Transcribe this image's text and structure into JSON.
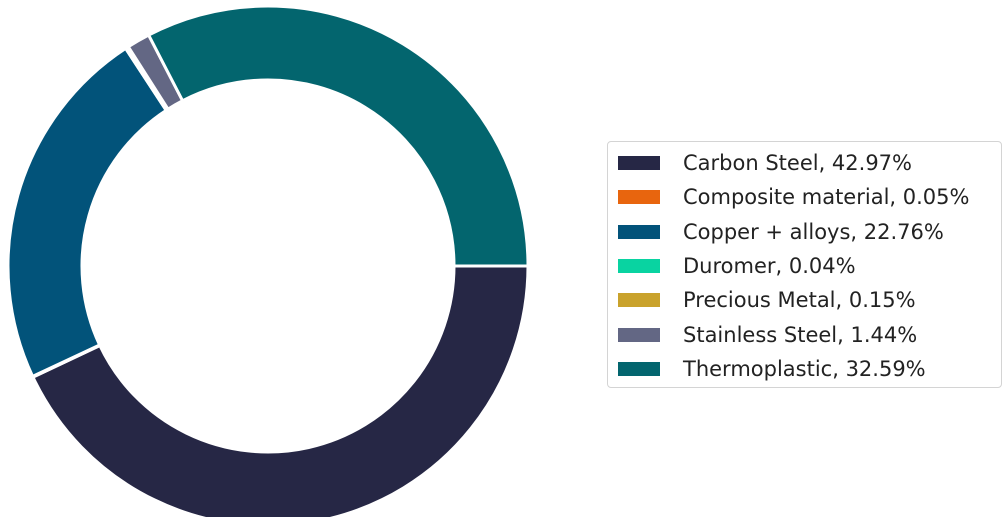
{
  "chart_data": {
    "type": "pie",
    "donut": true,
    "legend_position": "right",
    "slices": [
      {
        "label": "Carbon Steel",
        "value": 42.97,
        "color": "#262745",
        "legend_text": "Carbon Steel, 42.97%"
      },
      {
        "label": "Composite material",
        "value": 0.05,
        "color": "#e8650e",
        "legend_text": "Composite material, 0.05%"
      },
      {
        "label": "Copper + alloys",
        "value": 22.76,
        "color": "#02537a",
        "legend_text": "Copper + alloys, 22.76%"
      },
      {
        "label": "Duromer",
        "value": 0.04,
        "color": "#09d3a1",
        "legend_text": "Duromer, 0.04%"
      },
      {
        "label": "Precious Metal",
        "value": 0.15,
        "color": "#c9a22c",
        "legend_text": "Precious Metal, 0.15%"
      },
      {
        "label": "Stainless Steel",
        "value": 1.44,
        "color": "#636784",
        "legend_text": "Stainless Steel, 1.44%"
      },
      {
        "label": "Thermoplastic",
        "value": 32.59,
        "color": "#03656e",
        "legend_text": "Thermoplastic, 32.59%"
      }
    ]
  }
}
